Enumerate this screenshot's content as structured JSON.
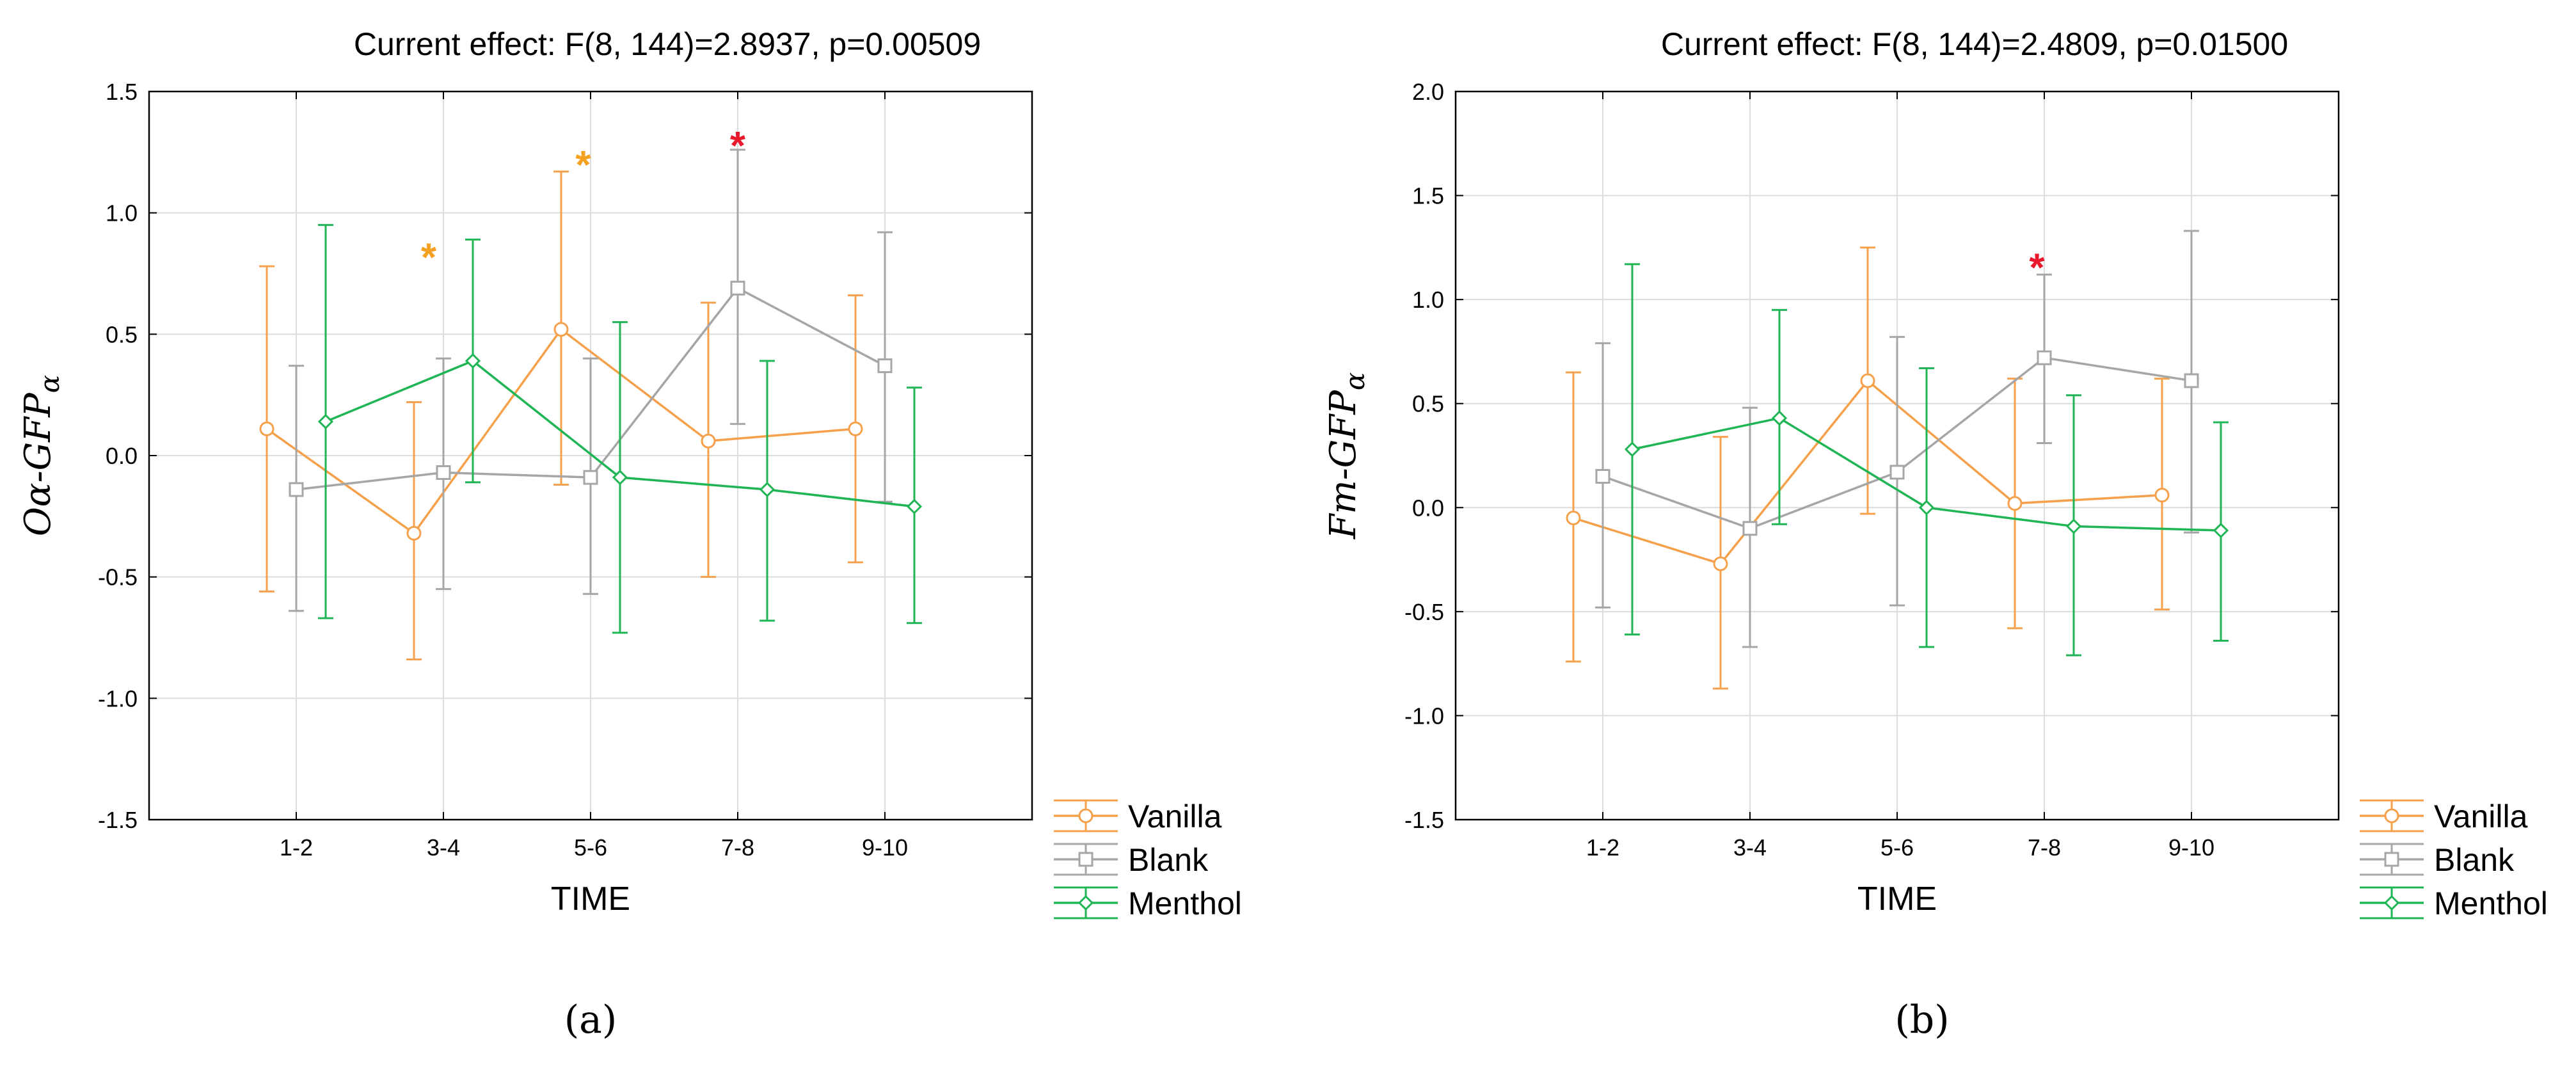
{
  "colors": {
    "vanilla": "#f5a04a",
    "blank": "#a6a6a6",
    "menthol": "#1fb555",
    "star_orange": "#f4a020",
    "star_red": "#e8192c",
    "grid": "#dcdcdc",
    "axis": "#000000"
  },
  "chart_data": [
    {
      "type": "line",
      "panel_label": "(a)",
      "title": "Current effect: F(8, 144)=2.8937, p=0.00509",
      "xlabel": "TIME",
      "ylabel": "Oα-GFPα",
      "ylabel_main": "Oα-GFP",
      "ylabel_sub": "α",
      "categories": [
        "1-2",
        "3-4",
        "5-6",
        "7-8",
        "9-10"
      ],
      "ylim": [
        -1.5,
        1.5
      ],
      "yticks": [
        -1.5,
        -1.0,
        -0.5,
        0.0,
        0.5,
        1.0,
        1.5
      ],
      "ytick_labels": [
        "-1.5",
        "-1.0",
        "-0.5",
        "0.0",
        "0.5",
        "1.0",
        "1.5"
      ],
      "grid": true,
      "legend_position": "right-bottom",
      "series": [
        {
          "name": "Vanilla",
          "marker": "circle",
          "color_key": "vanilla",
          "offset": -0.2,
          "values": [
            0.11,
            -0.32,
            0.52,
            0.06,
            0.11
          ],
          "lower": [
            -0.56,
            -0.84,
            -0.12,
            -0.5,
            -0.44
          ],
          "upper": [
            0.78,
            0.22,
            1.17,
            0.63,
            0.66
          ]
        },
        {
          "name": "Blank",
          "marker": "square",
          "color_key": "blank",
          "offset": 0.0,
          "values": [
            -0.14,
            -0.07,
            -0.09,
            0.69,
            0.37
          ],
          "lower": [
            -0.64,
            -0.55,
            -0.57,
            0.13,
            -0.19
          ],
          "upper": [
            0.37,
            0.4,
            0.4,
            1.26,
            0.92
          ]
        },
        {
          "name": "Menthol",
          "marker": "diamond",
          "color_key": "menthol",
          "offset": 0.2,
          "values": [
            0.14,
            0.39,
            -0.09,
            -0.14,
            -0.21
          ],
          "lower": [
            -0.67,
            -0.11,
            -0.73,
            -0.68,
            -0.69
          ],
          "upper": [
            0.95,
            0.89,
            0.55,
            0.39,
            0.28
          ]
        }
      ],
      "annotations": [
        {
          "text": "*",
          "x_index": 1,
          "offset": -0.1,
          "y": 0.84,
          "color_key": "star_orange"
        },
        {
          "text": "*",
          "x_index": 2,
          "offset": -0.05,
          "y": 1.22,
          "color_key": "star_orange"
        },
        {
          "text": "*",
          "x_index": 3,
          "offset": 0.0,
          "y": 1.3,
          "color_key": "star_red"
        }
      ]
    },
    {
      "type": "line",
      "panel_label": "(b)",
      "title": "Current effect: F(8, 144)=2.4809, p=0.01500",
      "xlabel": "TIME",
      "ylabel": "Fm-GFPα",
      "ylabel_main": "Fm-GFP",
      "ylabel_sub": "α",
      "categories": [
        "1-2",
        "3-4",
        "5-6",
        "7-8",
        "9-10"
      ],
      "ylim": [
        -1.5,
        2.0
      ],
      "yticks": [
        -1.5,
        -1.0,
        -0.5,
        0.0,
        0.5,
        1.0,
        1.5,
        2.0
      ],
      "ytick_labels": [
        "-1.5",
        "-1.0",
        "-0.5",
        "0.0",
        "0.5",
        "1.0",
        "1.5",
        "2.0"
      ],
      "grid": true,
      "legend_position": "right-bottom",
      "series": [
        {
          "name": "Vanilla",
          "marker": "circle",
          "color_key": "vanilla",
          "offset": -0.2,
          "values": [
            -0.05,
            -0.27,
            0.61,
            0.02,
            0.06
          ],
          "lower": [
            -0.74,
            -0.87,
            -0.03,
            -0.58,
            -0.49
          ],
          "upper": [
            0.65,
            0.34,
            1.25,
            0.62,
            0.62
          ]
        },
        {
          "name": "Blank",
          "marker": "square",
          "color_key": "blank",
          "offset": 0.0,
          "values": [
            0.15,
            -0.1,
            0.17,
            0.72,
            0.61
          ],
          "lower": [
            -0.48,
            -0.67,
            -0.47,
            0.31,
            -0.12
          ],
          "upper": [
            0.79,
            0.48,
            0.82,
            1.12,
            1.33
          ]
        },
        {
          "name": "Menthol",
          "marker": "diamond",
          "color_key": "menthol",
          "offset": 0.2,
          "values": [
            0.28,
            0.43,
            0.0,
            -0.09,
            -0.11
          ],
          "lower": [
            -0.61,
            -0.08,
            -0.67,
            -0.71,
            -0.64
          ],
          "upper": [
            1.17,
            0.95,
            0.67,
            0.54,
            0.41
          ]
        }
      ],
      "annotations": [
        {
          "text": "*",
          "x_index": 3,
          "offset": -0.05,
          "y": 1.18,
          "color_key": "star_red"
        }
      ]
    }
  ]
}
